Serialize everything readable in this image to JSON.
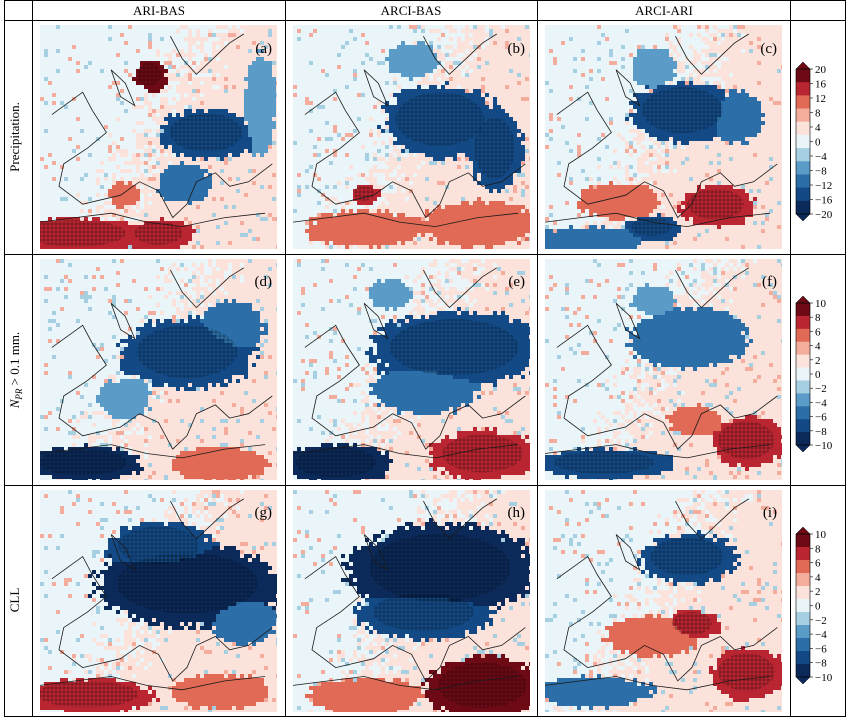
{
  "columns": [
    {
      "title": "ARI-BAS"
    },
    {
      "title": "ARCI-BAS"
    },
    {
      "title": "ARCI-ARI"
    }
  ],
  "rows": [
    {
      "label": "Precipitation.",
      "colorbar": {
        "ticks": [
          "20",
          "16",
          "12",
          "8",
          "4",
          "0",
          "−4",
          "−8",
          "−12",
          "−16",
          "−20"
        ],
        "min": -20,
        "max": 20
      },
      "panels": [
        {
          "letter": "(a)",
          "column": "ARI-BAS"
        },
        {
          "letter": "(b)",
          "column": "ARCI-BAS"
        },
        {
          "letter": "(c)",
          "column": "ARCI-ARI"
        }
      ]
    },
    {
      "label_parts": {
        "main": "N",
        "sub": "PR",
        "rest": " > 0.1 mm."
      },
      "colorbar": {
        "ticks": [
          "10",
          "8",
          "6",
          "4",
          "2",
          "0",
          "−2",
          "−4",
          "−6",
          "−8",
          "−10"
        ],
        "min": -10,
        "max": 10
      },
      "panels": [
        {
          "letter": "(d)",
          "column": "ARI-BAS"
        },
        {
          "letter": "(e)",
          "column": "ARCI-BAS"
        },
        {
          "letter": "(f)",
          "column": "ARCI-ARI"
        }
      ]
    },
    {
      "label": "CLL",
      "colorbar": {
        "ticks": [
          "10",
          "8",
          "6",
          "4",
          "2",
          "0",
          "−2",
          "−4",
          "−6",
          "−8",
          "−10"
        ],
        "min": -10,
        "max": 10
      },
      "panels": [
        {
          "letter": "(g)",
          "column": "ARI-BAS"
        },
        {
          "letter": "(h)",
          "column": "ARCI-BAS"
        },
        {
          "letter": "(i)",
          "column": "ARCI-ARI"
        }
      ]
    }
  ],
  "colors": {
    "scale": [
      "#0b2a5a",
      "#134a86",
      "#2b6ea8",
      "#5b9bc7",
      "#a6d0e2",
      "#e9f5f8",
      "#fbe3dc",
      "#f4ad9c",
      "#e06a55",
      "#b92530",
      "#6e0a16"
    ],
    "background_positive": "#fbe3dc",
    "background_neutral": "#e9f5f8",
    "coastline": "#1a1a1a",
    "grid_line": "#000000"
  }
}
